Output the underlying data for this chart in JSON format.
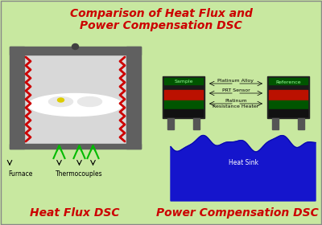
{
  "bg_color": "#c8e8a0",
  "title_line1": "Comparison of Heat Flux and",
  "title_line2": "Power Compensation DSC",
  "title_color": "#cc0000",
  "title_fontsize": 10,
  "label_left": "Heat Flux DSC",
  "label_right": "Power Compensation DSC",
  "label_color": "#cc0000",
  "label_fontsize": 10,
  "furnace_label": "Furnace",
  "thermocouple_label": "Thermocouples",
  "labels_right": [
    "Platinum Alloy",
    "PRT Sensor",
    "Platinum\nResistance Heater"
  ],
  "heat_sink_label": "Heat Sink",
  "sample_label": "Sample",
  "reference_label": "Reference"
}
